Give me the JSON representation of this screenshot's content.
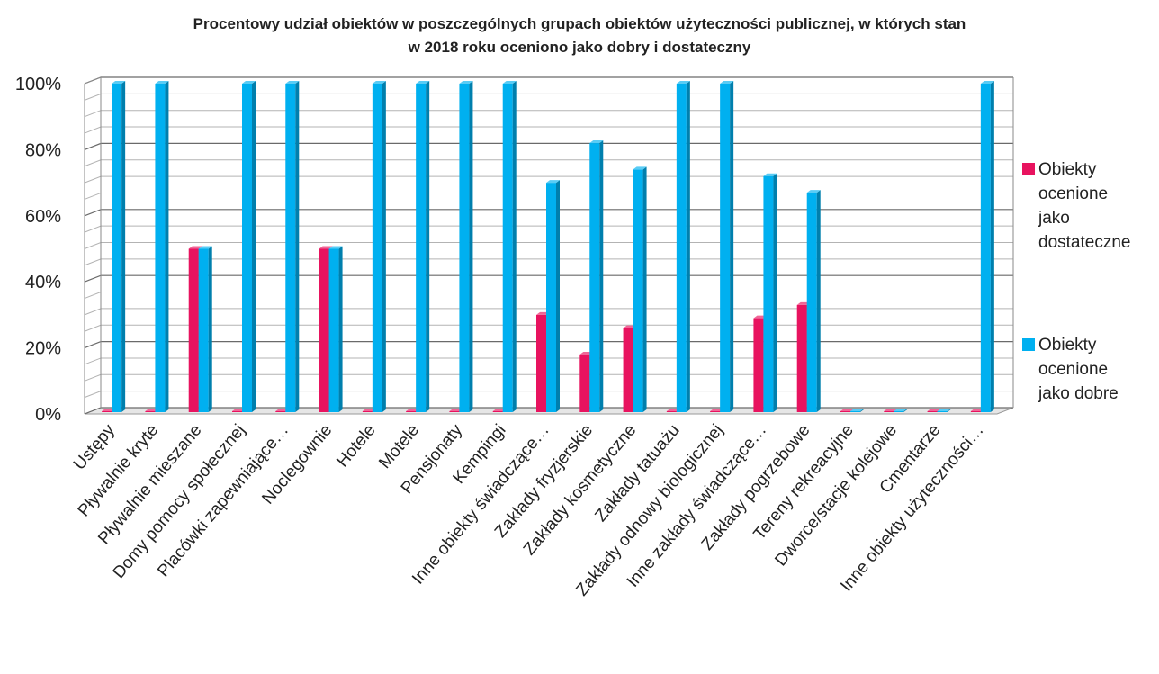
{
  "title": {
    "line1": "Procentowy udział obiektów w poszczególnych grupach obiektów użyteczności publicznej, w których stan",
    "line2": "w 2018 roku oceniono jako dobry i dostateczny"
  },
  "legend": {
    "items": [
      {
        "label_lines": [
          "Obiekty",
          "ocenione",
          "jako",
          "dostateczne"
        ],
        "color": "#E8135F"
      },
      {
        "label_lines": [
          "Obiekty",
          "ocenione",
          "jako dobre"
        ],
        "color": "#00B0F0"
      }
    ]
  },
  "chart_data": {
    "type": "bar",
    "title": "Procentowy udział obiektów w poszczególnych grupach obiektów użyteczności publicznej, w których stan w 2018 roku oceniono jako dobry i dostateczny",
    "xlabel": "",
    "ylabel": "",
    "ylim": [
      0,
      100
    ],
    "yticks": [
      "0%",
      "20%",
      "40%",
      "60%",
      "80%",
      "100%"
    ],
    "grid": true,
    "legend_position": "right",
    "categories": [
      "Ustępy",
      "Pływalnie kryte",
      "Pływalnie mieszane",
      "Domy pomocy społecznej",
      "Placówki zapewniające…",
      "Noclegownie",
      "Hotele",
      "Motele",
      "Pensjonaty",
      "Kempingi",
      "Inne obiekty świadczące…",
      "Zakłady fryzjerskie",
      "Zakłady kosmetyczne",
      "Zakłady tatuażu",
      "Zakłady odnowy biologicznej",
      "Inne zakłady świadczące…",
      "Zakłady pogrzebowe",
      "Tereny rekreacyjne",
      "Dworce/stacje kolejowe",
      "Cmentarze",
      "Inne obiekty użyteczności…"
    ],
    "series": [
      {
        "name": "Obiekty ocenione jako dostateczne",
        "color": "#E8135F",
        "values": [
          0,
          0,
          50,
          0,
          0,
          50,
          0,
          0,
          0,
          0,
          30,
          18,
          26,
          0,
          0,
          29,
          33,
          0,
          0,
          0,
          0
        ]
      },
      {
        "name": "Obiekty ocenione jako dobre",
        "color": "#00B0F0",
        "values": [
          100,
          100,
          50,
          100,
          100,
          50,
          100,
          100,
          100,
          100,
          70,
          82,
          74,
          100,
          100,
          72,
          67,
          0,
          0,
          0,
          100
        ]
      }
    ]
  }
}
